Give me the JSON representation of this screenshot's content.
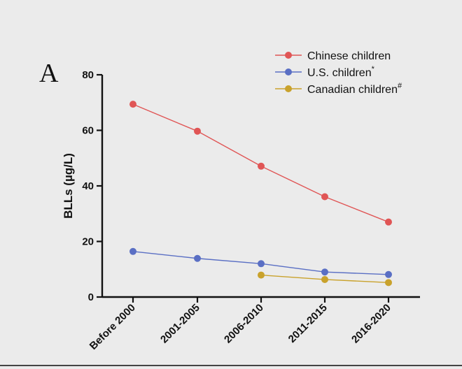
{
  "chart_data": {
    "type": "line",
    "panel_label": "A",
    "ylabel": "BLLs (µg/L)",
    "ylim": [
      0,
      80
    ],
    "yticks": [
      0,
      20,
      40,
      60,
      80
    ],
    "categories": [
      "Before 2000",
      "2001-2005",
      "2006-2010",
      "2011-2015",
      "2016-2020"
    ],
    "grid": false,
    "legend_position": "top-right",
    "series": [
      {
        "name": "Chinese children",
        "marker": "",
        "color": "#e05555",
        "values": [
          69.4,
          59.7,
          47.1,
          36.1,
          27.0
        ]
      },
      {
        "name": "U.S. children",
        "marker": "*",
        "color": "#5a6fc4",
        "values": [
          16.4,
          13.9,
          12.0,
          9.0,
          8.1
        ]
      },
      {
        "name": "Canadian children",
        "marker": "#",
        "color": "#c9a22c",
        "values": [
          null,
          null,
          7.9,
          6.3,
          5.2
        ]
      }
    ]
  }
}
